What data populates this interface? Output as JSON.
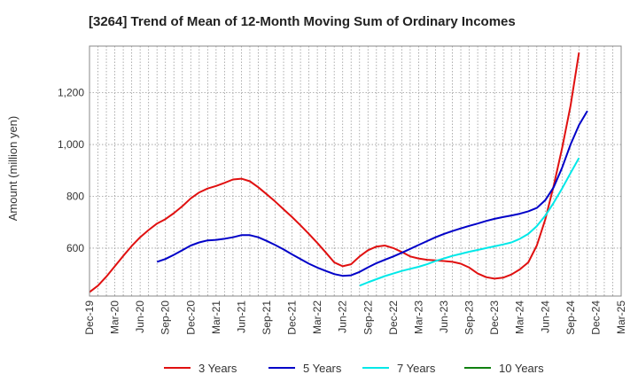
{
  "chart_data": {
    "type": "line",
    "title": "[3264]  Trend of Mean of 12-Month Moving Sum of Ordinary Incomes",
    "xlabel": "",
    "ylabel": "Amount (million yen)",
    "ylim": [
      415,
      1380
    ],
    "yticks": [
      600,
      800,
      1000,
      1200
    ],
    "ytick_labels": [
      "600",
      "800",
      "1,000",
      "1,200"
    ],
    "x_range": [
      0,
      63
    ],
    "xticks": [
      0,
      3,
      6,
      9,
      12,
      15,
      18,
      21,
      24,
      27,
      30,
      33,
      36,
      39,
      42,
      45,
      48,
      51,
      54,
      57,
      60,
      63
    ],
    "xtick_labels": [
      "Dec-19",
      "Mar-20",
      "Jun-20",
      "Sep-20",
      "Dec-20",
      "Mar-21",
      "Jun-21",
      "Sep-21",
      "Dec-21",
      "Mar-22",
      "Jun-22",
      "Sep-22",
      "Dec-22",
      "Mar-23",
      "Jun-23",
      "Sep-23",
      "Dec-23",
      "Mar-24",
      "Jun-24",
      "Sep-24",
      "Dec-24",
      "Mar-25"
    ],
    "legend_position": "bottom",
    "series": [
      {
        "name": "3 Years",
        "color": "#e01010",
        "start": 0,
        "values": [
          430,
          455,
          490,
          530,
          570,
          608,
          642,
          670,
          695,
          712,
          735,
          762,
          792,
          815,
          830,
          840,
          852,
          865,
          868,
          858,
          835,
          808,
          780,
          750,
          720,
          688,
          655,
          620,
          583,
          545,
          530,
          538,
          568,
          592,
          606,
          610,
          600,
          585,
          568,
          560,
          555,
          553,
          550,
          547,
          540,
          525,
          502,
          488,
          482,
          486,
          498,
          518,
          545,
          610,
          710,
          840,
          985,
          1150,
          1355
        ]
      },
      {
        "name": "5 Years",
        "color": "#0000c8",
        "start": 8,
        "values": [
          547,
          558,
          574,
          592,
          610,
          622,
          630,
          632,
          636,
          642,
          650,
          650,
          642,
          628,
          612,
          595,
          576,
          558,
          540,
          525,
          512,
          500,
          493,
          495,
          508,
          526,
          542,
          555,
          568,
          582,
          597,
          612,
          627,
          642,
          655,
          666,
          676,
          686,
          695,
          705,
          713,
          720,
          726,
          733,
          742,
          755,
          785,
          835,
          910,
          1000,
          1075,
          1130
        ]
      },
      {
        "name": "7 Years",
        "color": "#00e8e8",
        "start": 32,
        "values": [
          455,
          468,
          480,
          492,
          502,
          512,
          520,
          528,
          538,
          550,
          560,
          570,
          578,
          586,
          593,
          600,
          607,
          614,
          622,
          636,
          655,
          685,
          725,
          775,
          830,
          890,
          948
        ]
      },
      {
        "name": "10 Years",
        "color": "#108010",
        "start": 0,
        "values": []
      }
    ]
  }
}
